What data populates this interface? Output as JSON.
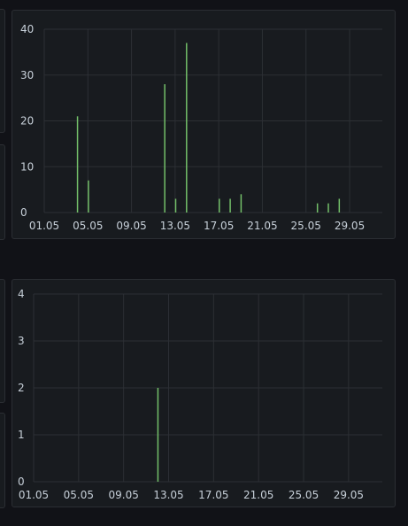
{
  "colors": {
    "background": "#111217",
    "panel": "#181b1f",
    "grid": "#2c2f34",
    "tick_text": "#c7d0d9",
    "bar": "#73bf69"
  },
  "chart_data": [
    {
      "type": "bar",
      "title": "",
      "xlabel": "",
      "ylabel": "",
      "x_tick_labels": [
        "01.05",
        "05.05",
        "09.05",
        "13.05",
        "17.05",
        "21.05",
        "25.05",
        "29.05"
      ],
      "y_ticks": [
        0,
        10,
        20,
        30,
        40
      ],
      "ylim": [
        0,
        40
      ],
      "grid": true,
      "legend": "none",
      "x": [
        "04.05",
        "05.05",
        "12.05",
        "13.05",
        "14.05",
        "17.05",
        "18.05",
        "19.05",
        "26.05",
        "27.05",
        "28.05"
      ],
      "values": [
        21,
        7,
        28,
        3,
        37,
        3,
        3,
        4,
        2,
        2,
        3
      ]
    },
    {
      "type": "bar",
      "title": "",
      "xlabel": "",
      "ylabel": "",
      "x_tick_labels": [
        "01.05",
        "05.05",
        "09.05",
        "13.05",
        "17.05",
        "21.05",
        "25.05",
        "29.05"
      ],
      "y_ticks": [
        0,
        1,
        2,
        3,
        4
      ],
      "ylim": [
        0,
        4
      ],
      "grid": true,
      "legend": "none",
      "x": [
        "12.05"
      ],
      "values": [
        2
      ]
    }
  ]
}
